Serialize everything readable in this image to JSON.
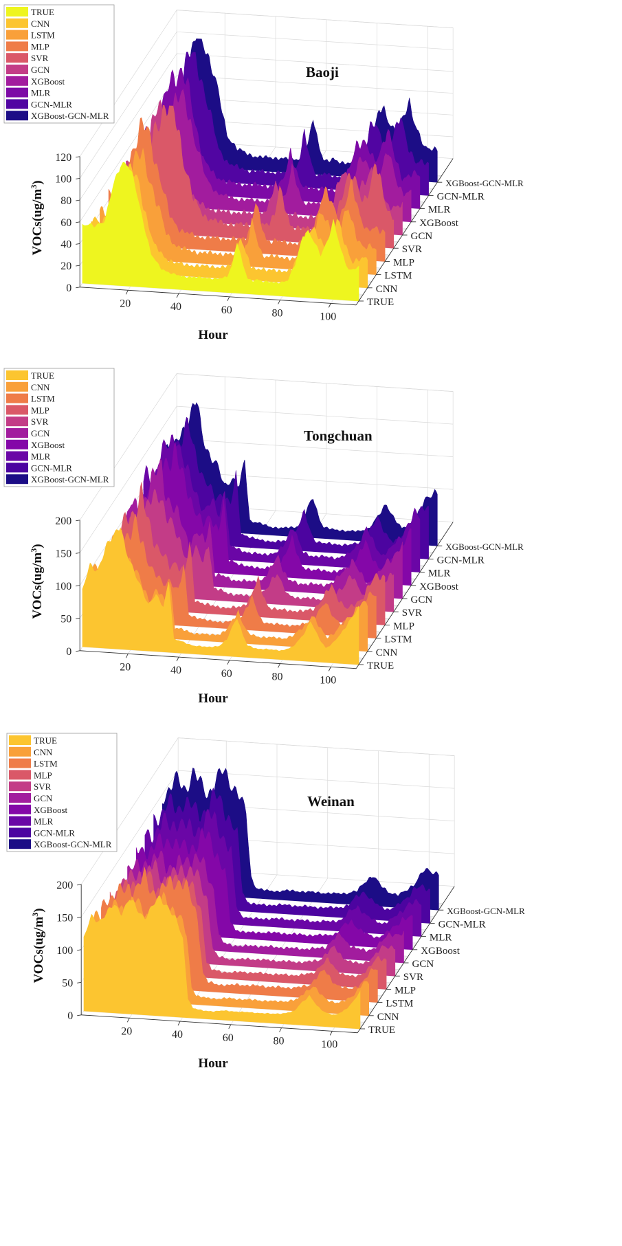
{
  "series_names": [
    "TRUE",
    "CNN",
    "LSTM",
    "MLP",
    "SVR",
    "GCN",
    "XGBoost",
    "MLR",
    "GCN-MLR",
    "XGBoost-GCN-MLR"
  ],
  "palettes": {
    "baoji": [
      "#eef51f",
      "#fcc530",
      "#f9a03a",
      "#ef7c48",
      "#da5868",
      "#c33c87",
      "#a21c9e",
      "#7d0aa6",
      "#5105a2",
      "#1c0d86"
    ],
    "tongchuan": [
      "#fcc530",
      "#f9a03a",
      "#ef7c48",
      "#da5868",
      "#c33c87",
      "#a21c9e",
      "#8407a8",
      "#6a06a6",
      "#4c04a0",
      "#1c0d86"
    ],
    "weinan": [
      "#fcc530",
      "#f9a03a",
      "#ef7c48",
      "#da5868",
      "#c33c87",
      "#a21c9e",
      "#8407a8",
      "#6a06a6",
      "#4c04a0",
      "#1c0d86"
    ]
  },
  "chart_data": [
    {
      "id": "baoji",
      "type": "area",
      "title": "Baoji",
      "xlabel": "Hour",
      "ylabel": "VOCs(ug/m³)",
      "ylabel_base": "VOCs(ug/m",
      "ylabel_sup": "3",
      "ylabel_end": ")",
      "xlim": [
        1,
        110
      ],
      "ylim": [
        0,
        120
      ],
      "xticks": [
        20,
        40,
        60,
        80,
        100
      ],
      "yticks": [
        0,
        20,
        40,
        60,
        80,
        100,
        120
      ],
      "xtick_labels": [
        "20",
        "40",
        "60",
        "80",
        "100"
      ],
      "ytick_labels": [
        "0",
        "20",
        "40",
        "60",
        "80",
        "100",
        "120"
      ],
      "series_labels": [
        "TRUE",
        "CNN",
        "LSTM",
        "MLP",
        "SVR",
        "GCN",
        "XGBoost",
        "MLR",
        "GCN-MLR",
        "XGBoost-GCN-MLR"
      ],
      "legend": [
        "TRUE",
        "CNN",
        "LSTM",
        "MLP",
        "SVR",
        "GCN",
        "XGBoost",
        "MLR",
        "GCN-MLR",
        "XGBoost-GCN-MLR"
      ],
      "profile": [
        [
          1,
          52
        ],
        [
          5,
          54
        ],
        [
          10,
          58
        ],
        [
          13,
          90
        ],
        [
          16,
          114
        ],
        [
          19,
          110
        ],
        [
          22,
          90
        ],
        [
          25,
          60
        ],
        [
          28,
          30
        ],
        [
          32,
          18
        ],
        [
          36,
          14
        ],
        [
          40,
          12
        ],
        [
          45,
          12
        ],
        [
          50,
          12
        ],
        [
          55,
          12
        ],
        [
          58,
          14
        ],
        [
          60,
          25
        ],
        [
          62,
          48
        ],
        [
          64,
          28
        ],
        [
          66,
          14
        ],
        [
          68,
          12
        ],
        [
          70,
          14
        ],
        [
          72,
          12
        ],
        [
          75,
          12
        ],
        [
          78,
          12
        ],
        [
          82,
          14
        ],
        [
          85,
          30
        ],
        [
          88,
          58
        ],
        [
          90,
          60
        ],
        [
          92,
          52
        ],
        [
          95,
          40
        ],
        [
          98,
          56
        ],
        [
          100,
          70
        ],
        [
          103,
          45
        ],
        [
          106,
          28
        ],
        [
          110,
          30
        ]
      ],
      "series": [
        {
          "name": "TRUE",
          "scale": 1.0,
          "shift": 0,
          "noise": 0.05
        },
        {
          "name": "CNN",
          "scale": 0.85,
          "shift": 2,
          "noise": 0.12
        },
        {
          "name": "LSTM",
          "scale": 0.82,
          "shift": 1,
          "noise": 0.14
        },
        {
          "name": "MLP",
          "scale": 0.95,
          "shift": 3,
          "noise": 0.14
        },
        {
          "name": "SVR",
          "scale": 1.05,
          "shift": -3,
          "noise": 0.16
        },
        {
          "name": "GCN",
          "scale": 0.9,
          "shift": 2,
          "noise": 0.15
        },
        {
          "name": "XGBoost",
          "scale": 0.88,
          "shift": -1,
          "noise": 0.13
        },
        {
          "name": "MLR",
          "scale": 1.0,
          "shift": 3,
          "noise": 0.14
        },
        {
          "name": "GCN-MLR",
          "scale": 1.0,
          "shift": 1,
          "noise": 0.12
        },
        {
          "name": "XGBoost-GCN-MLR",
          "scale": 1.05,
          "shift": 1,
          "noise": 0.1
        }
      ]
    },
    {
      "id": "tongchuan",
      "type": "area",
      "title": "Tongchuan",
      "xlabel": "Hour",
      "ylabel": "VOCs(ug/m³)",
      "ylabel_base": "VOCs(ug/m",
      "ylabel_sup": "3",
      "ylabel_end": ")",
      "xlim": [
        1,
        110
      ],
      "ylim": [
        0,
        200
      ],
      "xticks": [
        20,
        40,
        60,
        80,
        100
      ],
      "yticks": [
        0,
        50,
        100,
        150,
        200
      ],
      "xtick_labels": [
        "20",
        "40",
        "60",
        "80",
        "100"
      ],
      "ytick_labels": [
        "0",
        "50",
        "100",
        "150",
        "200"
      ],
      "series_labels": [
        "TRUE",
        "CNN",
        "LSTM",
        "MLP",
        "SVR",
        "GCN",
        "XGBoost",
        "MLR",
        "GCN-MLR",
        "XGBoost-GCN-MLR"
      ],
      "legend": [
        "TRUE",
        "CNN",
        "LSTM",
        "MLP",
        "SVR",
        "GCN",
        "XGBoost",
        "MLR",
        "GCN-MLR",
        "XGBoost-GCN-MLR"
      ],
      "profile": [
        [
          1,
          85
        ],
        [
          4,
          125
        ],
        [
          7,
          120
        ],
        [
          10,
          150
        ],
        [
          13,
          170
        ],
        [
          16,
          195
        ],
        [
          18,
          150
        ],
        [
          21,
          120
        ],
        [
          24,
          100
        ],
        [
          27,
          70
        ],
        [
          30,
          85
        ],
        [
          33,
          70
        ],
        [
          35,
          110
        ],
        [
          37,
          20
        ],
        [
          40,
          18
        ],
        [
          45,
          12
        ],
        [
          50,
          12
        ],
        [
          55,
          14
        ],
        [
          58,
          25
        ],
        [
          60,
          45
        ],
        [
          62,
          60
        ],
        [
          64,
          35
        ],
        [
          66,
          18
        ],
        [
          70,
          14
        ],
        [
          75,
          14
        ],
        [
          80,
          14
        ],
        [
          84,
          20
        ],
        [
          88,
          40
        ],
        [
          91,
          60
        ],
        [
          94,
          38
        ],
        [
          97,
          22
        ],
        [
          100,
          30
        ],
        [
          103,
          45
        ],
        [
          106,
          65
        ],
        [
          110,
          85
        ]
      ],
      "series": [
        {
          "name": "TRUE",
          "scale": 1.0,
          "shift": 0,
          "noise": 0.05
        },
        {
          "name": "CNN",
          "scale": 0.82,
          "shift": 3,
          "noise": 0.12
        },
        {
          "name": "LSTM",
          "scale": 0.8,
          "shift": 1,
          "noise": 0.13
        },
        {
          "name": "MLP",
          "scale": 0.9,
          "shift": 2,
          "noise": 0.15
        },
        {
          "name": "SVR",
          "scale": 0.85,
          "shift": -2,
          "noise": 0.15
        },
        {
          "name": "GCN",
          "scale": 0.92,
          "shift": 1,
          "noise": 0.16
        },
        {
          "name": "XGBoost",
          "scale": 0.98,
          "shift": -1,
          "noise": 0.15
        },
        {
          "name": "MLR",
          "scale": 1.0,
          "shift": 2,
          "noise": 0.14
        },
        {
          "name": "GCN-MLR",
          "scale": 0.95,
          "shift": 1,
          "noise": 0.12
        },
        {
          "name": "XGBoost-GCN-MLR",
          "scale": 1.0,
          "shift": 1,
          "noise": 0.1
        }
      ]
    },
    {
      "id": "weinan",
      "type": "area",
      "title": "Weinan",
      "xlabel": "Hour",
      "ylabel": "VOCs(ug/m³)",
      "ylabel_base": "VOCs(ug/m",
      "ylabel_sup": "3",
      "ylabel_end": ")",
      "xlim": [
        1,
        110
      ],
      "ylim": [
        0,
        200
      ],
      "xticks": [
        20,
        40,
        60,
        80,
        100
      ],
      "yticks": [
        0,
        50,
        100,
        150,
        200
      ],
      "xtick_labels": [
        "20",
        "40",
        "60",
        "80",
        "100"
      ],
      "ytick_labels": [
        "0",
        "50",
        "100",
        "150",
        "200"
      ],
      "series_labels": [
        "TRUE",
        "CNN",
        "LSTM",
        "MLP",
        "SVR",
        "GCN",
        "XGBoost",
        "MLR",
        "GCN-MLR",
        "XGBoost-GCN-MLR"
      ],
      "legend": [
        "TRUE",
        "CNN",
        "LSTM",
        "MLP",
        "SVR",
        "GCN",
        "XGBoost",
        "MLR",
        "GCN-MLR",
        "XGBoost-GCN-MLR"
      ],
      "profile": [
        [
          1,
          110
        ],
        [
          4,
          145
        ],
        [
          7,
          140
        ],
        [
          10,
          150
        ],
        [
          13,
          165
        ],
        [
          16,
          155
        ],
        [
          19,
          175
        ],
        [
          22,
          160
        ],
        [
          25,
          150
        ],
        [
          28,
          165
        ],
        [
          31,
          180
        ],
        [
          34,
          170
        ],
        [
          37,
          150
        ],
        [
          40,
          120
        ],
        [
          42,
          30
        ],
        [
          44,
          15
        ],
        [
          48,
          12
        ],
        [
          52,
          12
        ],
        [
          56,
          14
        ],
        [
          60,
          14
        ],
        [
          65,
          14
        ],
        [
          70,
          14
        ],
        [
          75,
          14
        ],
        [
          80,
          16
        ],
        [
          84,
          20
        ],
        [
          87,
          35
        ],
        [
          90,
          45
        ],
        [
          93,
          30
        ],
        [
          96,
          22
        ],
        [
          100,
          18
        ],
        [
          103,
          24
        ],
        [
          106,
          35
        ],
        [
          110,
          55
        ]
      ],
      "series": [
        {
          "name": "TRUE",
          "scale": 1.0,
          "shift": 0,
          "noise": 0.04
        },
        {
          "name": "CNN",
          "scale": 0.88,
          "shift": 2,
          "noise": 0.1
        },
        {
          "name": "LSTM",
          "scale": 0.95,
          "shift": 1,
          "noise": 0.12
        },
        {
          "name": "MLP",
          "scale": 0.85,
          "shift": 3,
          "noise": 0.12
        },
        {
          "name": "SVR",
          "scale": 0.82,
          "shift": 4,
          "noise": 0.13
        },
        {
          "name": "GCN",
          "scale": 0.8,
          "shift": 5,
          "noise": 0.14
        },
        {
          "name": "XGBoost",
          "scale": 0.85,
          "shift": 4,
          "noise": 0.13
        },
        {
          "name": "MLR",
          "scale": 0.9,
          "shift": 5,
          "noise": 0.13
        },
        {
          "name": "GCN-MLR",
          "scale": 0.95,
          "shift": 6,
          "noise": 0.12
        },
        {
          "name": "XGBoost-GCN-MLR",
          "scale": 1.05,
          "shift": 6,
          "noise": 0.1
        }
      ]
    }
  ]
}
